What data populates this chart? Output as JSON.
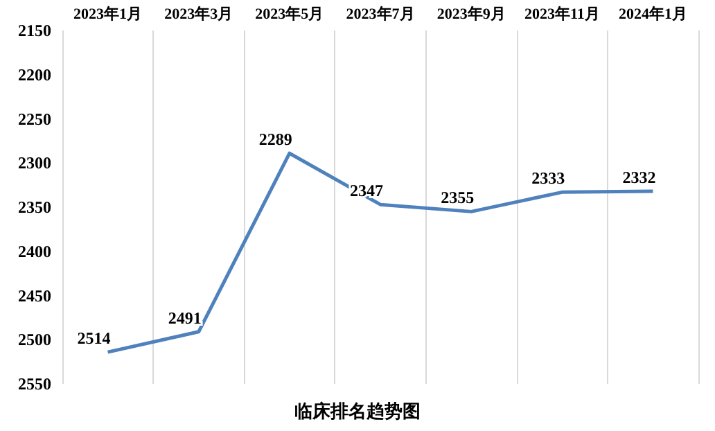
{
  "chart_data": {
    "type": "line",
    "title": "临床排名趋势图",
    "categories": [
      "2023年1月",
      "2023年3月",
      "2023年5月",
      "2023年7月",
      "2023年9月",
      "2023年11月",
      "2024年1月"
    ],
    "series": [
      {
        "color": "#4f81bd",
        "values": [
          2514,
          2491,
          2289,
          2347,
          2355,
          2333,
          2332
        ]
      }
    ],
    "ylim": [
      2550,
      2150
    ],
    "yticks": [
      2150,
      2200,
      2250,
      2300,
      2350,
      2400,
      2450,
      2500,
      2550
    ],
    "grid": "x",
    "data_labels": true,
    "marker": "none",
    "line_style": "solid"
  }
}
